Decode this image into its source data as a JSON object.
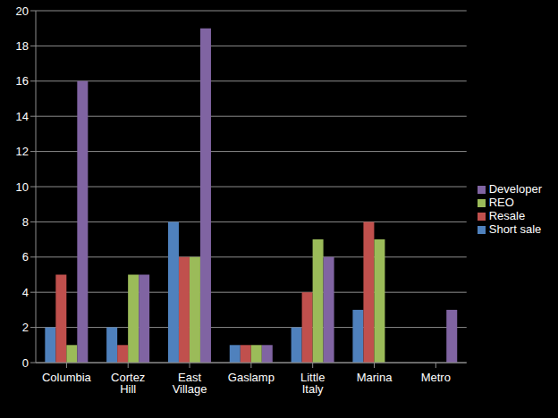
{
  "chart_data": {
    "type": "bar",
    "categories": [
      "Columbia",
      "Cortez Hill",
      "East Village",
      "Gaslamp",
      "Little Italy",
      "Marina",
      "Metro"
    ],
    "series": [
      {
        "name": "Short sale",
        "color": "#4f81bd",
        "values": [
          2,
          2,
          8,
          1,
          2,
          3,
          0
        ]
      },
      {
        "name": "Resale",
        "color": "#c0504d",
        "values": [
          5,
          1,
          6,
          1,
          4,
          8,
          0
        ]
      },
      {
        "name": "REO",
        "color": "#9bbb59",
        "values": [
          1,
          5,
          6,
          1,
          7,
          7,
          0
        ]
      },
      {
        "name": "Developer",
        "color": "#8064a2",
        "values": [
          16,
          5,
          19,
          1,
          6,
          0,
          3
        ]
      }
    ],
    "ylim": [
      0,
      20
    ],
    "yticks": [
      0,
      2,
      4,
      6,
      8,
      10,
      12,
      14,
      16,
      18,
      20
    ],
    "grid": true,
    "legend": "right"
  }
}
